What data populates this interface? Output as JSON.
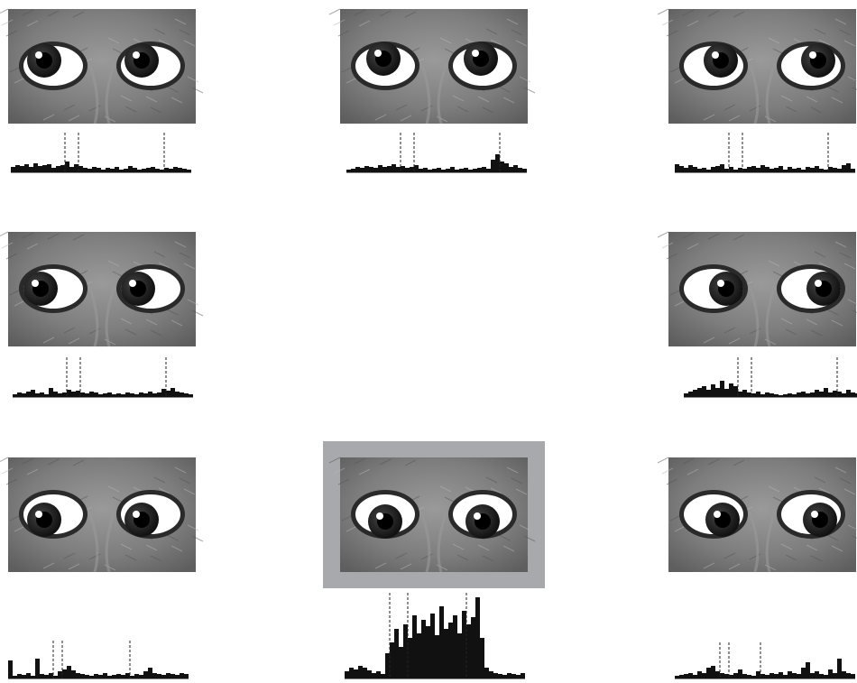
{
  "panels": [
    {
      "values": [
        6,
        8,
        7,
        9,
        6,
        10,
        7,
        8,
        9,
        5,
        7,
        8,
        12,
        6,
        9,
        7,
        5,
        4,
        6,
        5,
        3,
        5,
        4,
        6,
        3,
        4,
        7,
        5,
        3,
        4,
        5,
        6,
        4,
        3,
        5,
        4,
        6,
        5,
        4,
        3
      ],
      "markers": [
        12,
        15,
        34
      ]
    },
    {
      "values": [
        3,
        4,
        6,
        5,
        7,
        6,
        5,
        8,
        6,
        7,
        9,
        6,
        7,
        5,
        6,
        8,
        4,
        5,
        3,
        4,
        5,
        3,
        4,
        6,
        3,
        4,
        5,
        3,
        4,
        5,
        6,
        4,
        14,
        20,
        12,
        10,
        6,
        8,
        5,
        4
      ],
      "markers": [
        12,
        15,
        34
      ]
    },
    {
      "values": [
        9,
        7,
        5,
        8,
        6,
        4,
        5,
        3,
        6,
        7,
        9,
        4,
        6,
        3,
        5,
        4,
        6,
        7,
        5,
        8,
        6,
        4,
        5,
        7,
        3,
        6,
        4,
        5,
        3,
        6,
        5,
        7,
        4,
        3,
        6,
        5,
        4,
        8,
        10,
        4
      ],
      "markers": [
        12,
        15,
        34
      ]
    },
    {
      "values": [
        3,
        5,
        4,
        6,
        8,
        4,
        5,
        3,
        10,
        6,
        4,
        5,
        8,
        6,
        7,
        5,
        4,
        6,
        5,
        3,
        4,
        5,
        3,
        4,
        3,
        5,
        4,
        3,
        5,
        4,
        6,
        4,
        5,
        9,
        7,
        10,
        6,
        5,
        4,
        3
      ],
      "markers": [
        12,
        15,
        34
      ]
    },
    {
      "values": [
        4,
        6,
        8,
        10,
        12,
        8,
        14,
        10,
        18,
        9,
        15,
        12,
        6,
        8,
        5,
        4,
        6,
        3,
        5,
        4,
        3,
        2,
        3,
        4,
        3,
        5,
        6,
        4,
        5,
        8,
        6,
        10,
        5,
        7,
        6,
        4,
        8,
        5,
        4,
        3
      ],
      "markers": [
        12,
        15,
        34
      ]
    },
    {
      "values": [
        20,
        3,
        5,
        4,
        6,
        3,
        22,
        5,
        4,
        6,
        3,
        8,
        10,
        14,
        9,
        6,
        5,
        4,
        3,
        5,
        4,
        6,
        3,
        4,
        5,
        4,
        6,
        3,
        5,
        4,
        8,
        12,
        6,
        5,
        4,
        6,
        5,
        4,
        6,
        5
      ],
      "markers": [
        10,
        12,
        27
      ]
    },
    {
      "values": [
        8,
        12,
        10,
        14,
        12,
        9,
        6,
        8,
        5,
        28,
        40,
        55,
        35,
        60,
        45,
        70,
        50,
        65,
        58,
        72,
        48,
        80,
        55,
        62,
        70,
        50,
        75,
        60,
        68,
        90,
        45,
        12,
        8,
        6,
        5,
        4,
        6,
        5,
        4,
        6
      ],
      "markers": [
        10,
        14,
        27
      ]
    },
    {
      "values": [
        3,
        4,
        5,
        6,
        4,
        8,
        6,
        12,
        14,
        8,
        6,
        5,
        4,
        6,
        10,
        5,
        4,
        3,
        8,
        5,
        4,
        6,
        5,
        7,
        4,
        8,
        6,
        5,
        12,
        18,
        6,
        8,
        5,
        4,
        10,
        6,
        22,
        8,
        6,
        5
      ],
      "markers": [
        10,
        12,
        19
      ]
    }
  ]
}
